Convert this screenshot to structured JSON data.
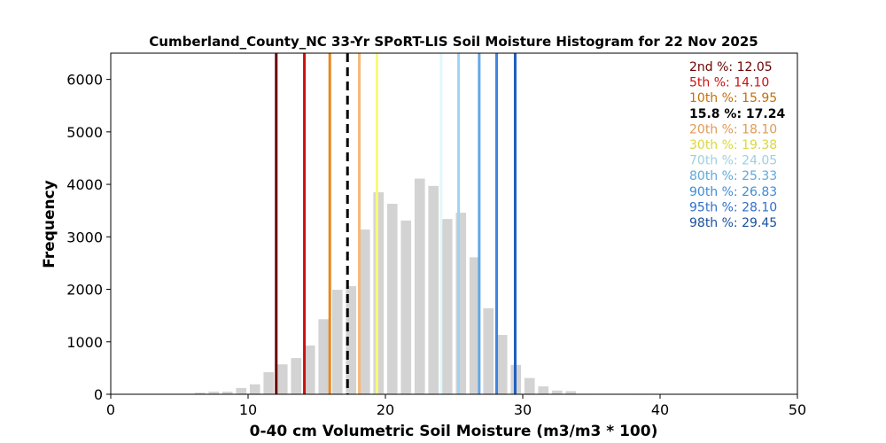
{
  "chart_data": {
    "type": "bar",
    "title": "Cumberland_County_NC 33-Yr SPoRT-LIS Soil Moisture Histogram for 22 Nov 2025",
    "xlabel": "0-40 cm Volumetric Soil Moisture (m3/m3 * 100)",
    "ylabel": "Frequency",
    "xlim": [
      0,
      50
    ],
    "ylim": [
      0,
      6500
    ],
    "xticks": [
      "0",
      "10",
      "20",
      "30",
      "40",
      "50"
    ],
    "yticks": [
      "0",
      "1000",
      "2000",
      "3000",
      "4000",
      "5000",
      "6000"
    ],
    "grid": false,
    "bar_color": "#d3d3d3",
    "bins": [
      {
        "x": 6.5,
        "value": 30
      },
      {
        "x": 7.5,
        "value": 50
      },
      {
        "x": 8.5,
        "value": 50
      },
      {
        "x": 9.5,
        "value": 120
      },
      {
        "x": 10.5,
        "value": 190
      },
      {
        "x": 11.5,
        "value": 420
      },
      {
        "x": 12.5,
        "value": 570
      },
      {
        "x": 13.5,
        "value": 690
      },
      {
        "x": 14.5,
        "value": 930
      },
      {
        "x": 15.5,
        "value": 1430
      },
      {
        "x": 16.5,
        "value": 1990
      },
      {
        "x": 17.5,
        "value": 2060
      },
      {
        "x": 18.5,
        "value": 3140
      },
      {
        "x": 19.5,
        "value": 3850
      },
      {
        "x": 20.5,
        "value": 3630
      },
      {
        "x": 21.5,
        "value": 3310
      },
      {
        "x": 22.5,
        "value": 4110
      },
      {
        "x": 23.5,
        "value": 3970
      },
      {
        "x": 24.5,
        "value": 3340
      },
      {
        "x": 25.5,
        "value": 3460
      },
      {
        "x": 26.5,
        "value": 2610
      },
      {
        "x": 27.5,
        "value": 1640
      },
      {
        "x": 28.5,
        "value": 1130
      },
      {
        "x": 29.5,
        "value": 560
      },
      {
        "x": 30.5,
        "value": 310
      },
      {
        "x": 31.5,
        "value": 150
      },
      {
        "x": 32.5,
        "value": 70
      },
      {
        "x": 33.5,
        "value": 60
      },
      {
        "x": 34.5,
        "value": 10
      },
      {
        "x": 38.5,
        "value": 10
      }
    ],
    "percentile_lines": [
      {
        "label": "2nd %: 12.05",
        "value": 12.05,
        "color": "#6b0000",
        "text_color": "#6b0000",
        "dashed": false
      },
      {
        "label": "5th %: 14.10",
        "value": 14.1,
        "color": "#cc1111",
        "text_color": "#cc1111",
        "dashed": false
      },
      {
        "label": "10th %: 15.95",
        "value": 15.95,
        "color": "#e8891a",
        "text_color": "#c4700a",
        "dashed": false
      },
      {
        "label": "15.8 %: 17.24",
        "value": 17.24,
        "color": "#000000",
        "text_color": "#000000",
        "dashed": true,
        "bold": true
      },
      {
        "label": "20th %: 18.10",
        "value": 18.1,
        "color": "#f5b87a",
        "text_color": "#e09a55",
        "dashed": false
      },
      {
        "label": "30th %: 19.38",
        "value": 19.38,
        "color": "#fafa78",
        "text_color": "#d8d840",
        "dashed": false
      },
      {
        "label": "70th %: 24.05",
        "value": 24.05,
        "color": "#e0f8fc",
        "text_color": "#9fd0dc",
        "dashed": false
      },
      {
        "label": "80th %: 25.33",
        "value": 25.33,
        "color": "#9fd3f5",
        "text_color": "#5ea9dd",
        "dashed": false
      },
      {
        "label": "90th %: 26.83",
        "value": 26.83,
        "color": "#62a8e8",
        "text_color": "#3f8cd6",
        "dashed": false
      },
      {
        "label": "95th %: 28.10",
        "value": 28.1,
        "color": "#3f84de",
        "text_color": "#2f6fcc",
        "dashed": false
      },
      {
        "label": "98th %: 29.45",
        "value": 29.45,
        "color": "#1f5fbf",
        "text_color": "#1a4f9e",
        "dashed": false
      }
    ]
  }
}
